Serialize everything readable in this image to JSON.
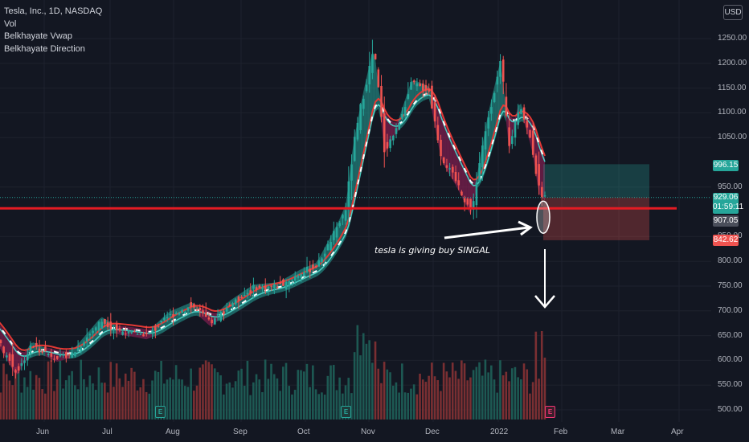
{
  "legend": {
    "symbol": "Tesla, Inc., 1D, NASDAQ",
    "vol": "Vol",
    "vwap": "Belkhayate Vwap",
    "direction": "Belkhayate Direction"
  },
  "currency_button": "USD",
  "annotation": "tesla is giving buy SINGAL",
  "colors": {
    "background": "#131722",
    "up": "#26a69a",
    "down": "#ef5350",
    "support_line": "#e31b23",
    "band_up": "#26a69a",
    "band_down": "#a3205e",
    "vwap_line": "#4dd0c4",
    "direction_line": "#e53935"
  },
  "earnings_markers": [
    {
      "label": "E",
      "month": "Jul",
      "color": "#26a69a"
    },
    {
      "label": "E",
      "month": "Oct",
      "color": "#26a69a"
    },
    {
      "label": "E",
      "month": "Jan",
      "color": "#f23675"
    }
  ],
  "price_tags": {
    "target": "996.15",
    "last": "929.06",
    "countdown": "01:59:11",
    "level": "907.05",
    "stop": "842.62"
  },
  "chart_data": {
    "type": "candlestick",
    "title": "Tesla, Inc., 1D, NASDAQ",
    "ylabel": "",
    "xlabel": "",
    "y_ticks": [
      "1250.00",
      "1200.00",
      "1150.00",
      "1100.00",
      "1050.00",
      "950.00",
      "850.00",
      "800.00",
      "750.00",
      "700.00",
      "650.00",
      "600.00",
      "550.00",
      "500.00"
    ],
    "x_ticks": [
      "Jun",
      "Jul",
      "Aug",
      "Sep",
      "Oct",
      "Nov",
      "Dec",
      "2022",
      "Feb",
      "Mar",
      "Apr"
    ],
    "ylim": [
      490,
      1265
    ],
    "grid": true,
    "support_level": 907.05,
    "position_box": {
      "entry": 929.06,
      "target": 996.15,
      "stop": 842.62
    },
    "price_path": [
      {
        "date": "2021-05-03",
        "close": 690
      },
      {
        "date": "2021-05-10",
        "close": 640
      },
      {
        "date": "2021-05-19",
        "close": 575
      },
      {
        "date": "2021-05-26",
        "close": 630
      },
      {
        "date": "2021-06-07",
        "close": 605
      },
      {
        "date": "2021-06-15",
        "close": 615
      },
      {
        "date": "2021-06-28",
        "close": 680
      },
      {
        "date": "2021-07-06",
        "close": 660
      },
      {
        "date": "2021-07-14",
        "close": 655
      },
      {
        "date": "2021-07-20",
        "close": 650
      },
      {
        "date": "2021-07-30",
        "close": 690
      },
      {
        "date": "2021-08-10",
        "close": 710
      },
      {
        "date": "2021-08-19",
        "close": 675
      },
      {
        "date": "2021-08-27",
        "close": 710
      },
      {
        "date": "2021-09-08",
        "close": 745
      },
      {
        "date": "2021-09-20",
        "close": 750
      },
      {
        "date": "2021-09-30",
        "close": 775
      },
      {
        "date": "2021-10-08",
        "close": 790
      },
      {
        "date": "2021-10-18",
        "close": 870
      },
      {
        "date": "2021-10-22",
        "close": 910
      },
      {
        "date": "2021-10-25",
        "close": 1025
      },
      {
        "date": "2021-10-29",
        "close": 1115
      },
      {
        "date": "2021-11-04",
        "close": 1230
      },
      {
        "date": "2021-11-09",
        "close": 1025
      },
      {
        "date": "2021-11-15",
        "close": 1070
      },
      {
        "date": "2021-11-22",
        "close": 1160
      },
      {
        "date": "2021-11-30",
        "close": 1145
      },
      {
        "date": "2021-12-06",
        "close": 1010
      },
      {
        "date": "2021-12-13",
        "close": 960
      },
      {
        "date": "2021-12-20",
        "close": 900
      },
      {
        "date": "2021-12-28",
        "close": 1090
      },
      {
        "date": "2022-01-03",
        "close": 1200
      },
      {
        "date": "2022-01-07",
        "close": 1030
      },
      {
        "date": "2022-01-12",
        "close": 1120
      },
      {
        "date": "2022-01-18",
        "close": 1030
      },
      {
        "date": "2022-01-21",
        "close": 945
      },
      {
        "date": "2022-01-24",
        "close": 930
      }
    ],
    "volume_note": "Vol histogram beneath price (largest bars in early November and late January)"
  }
}
